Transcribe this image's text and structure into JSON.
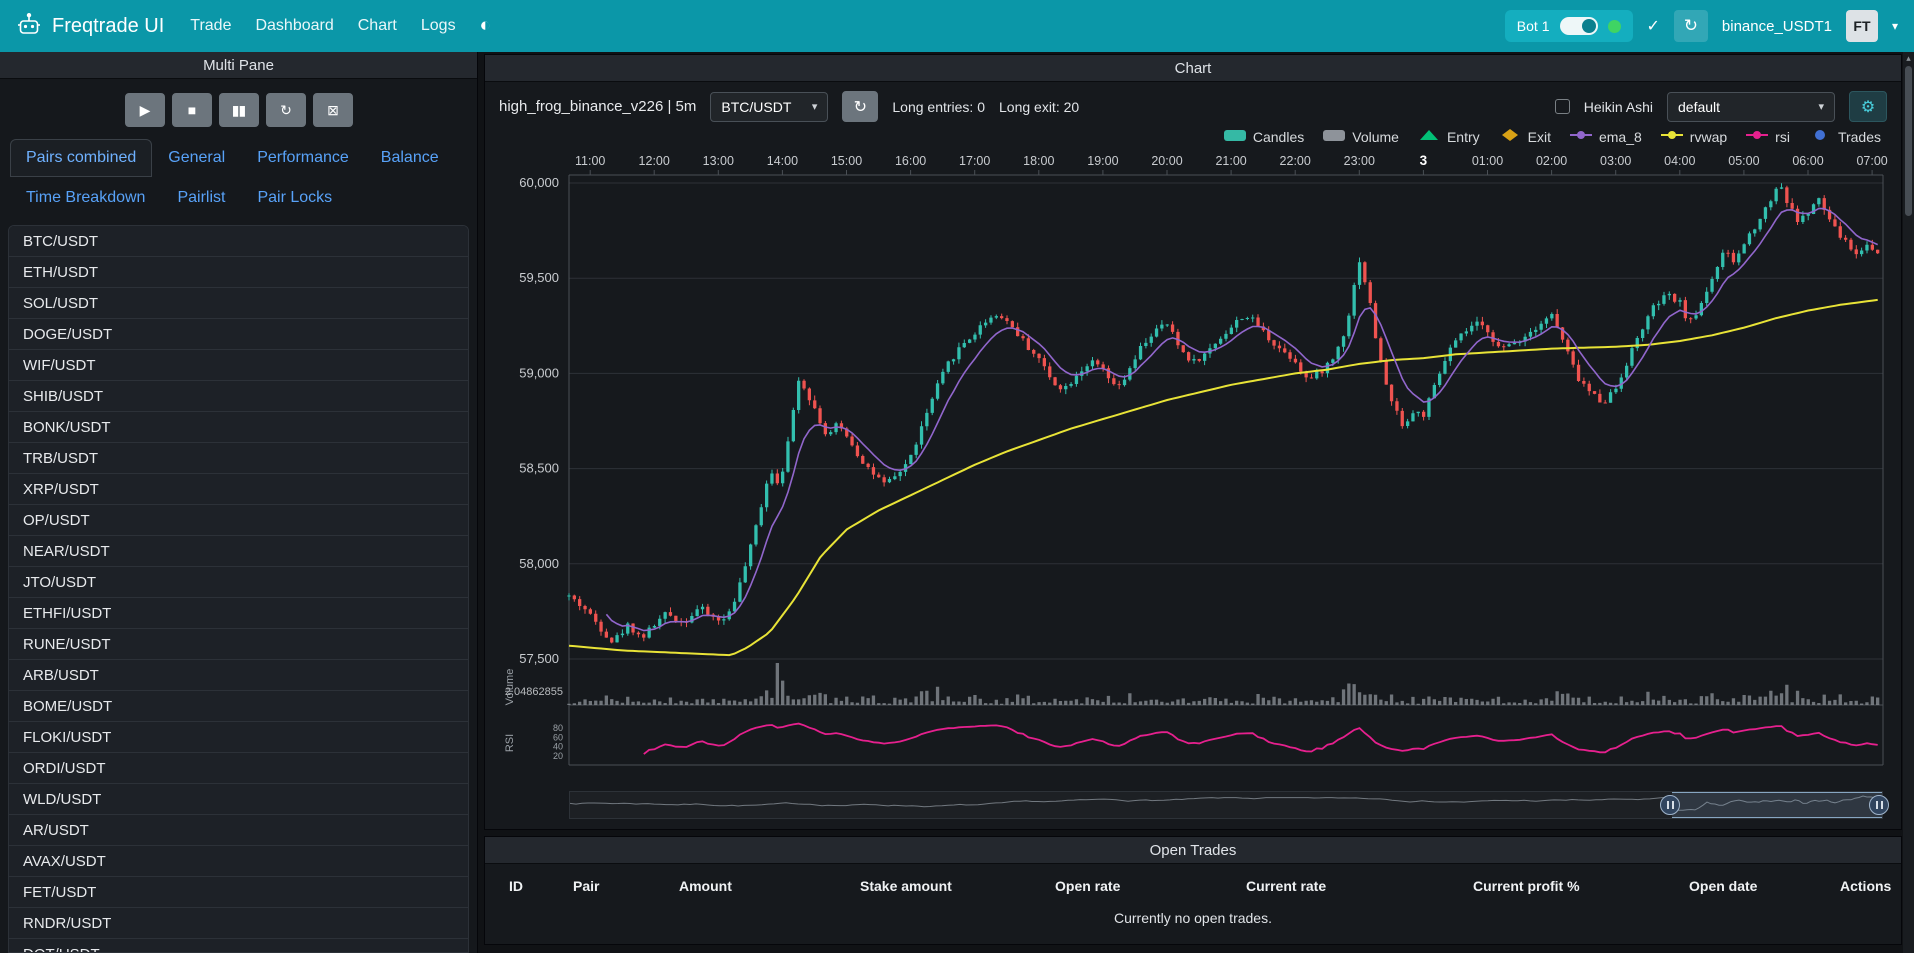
{
  "navbar": {
    "brand": "Freqtrade UI",
    "items": [
      "Trade",
      "Dashboard",
      "Chart",
      "Logs"
    ],
    "icons": {
      "theme": "◐",
      "check": "✓",
      "refresh": "↻",
      "caret": "▾"
    },
    "bot": {
      "label": "Bot 1",
      "online_color": "#3fd463"
    },
    "exchange_label": "binance_USDT1",
    "avatar": "FT"
  },
  "left_panel": {
    "title": "Multi Pane",
    "controls": [
      {
        "name": "play",
        "glyph": "▶"
      },
      {
        "name": "stop",
        "glyph": "■"
      },
      {
        "name": "pause",
        "glyph": "▮▮"
      },
      {
        "name": "reload",
        "glyph": "↻"
      },
      {
        "name": "clear-chart",
        "glyph": "⊠"
      }
    ],
    "tabs": [
      {
        "label": "Pairs combined",
        "active": true
      },
      {
        "label": "General",
        "active": false
      },
      {
        "label": "Performance",
        "active": false
      },
      {
        "label": "Balance",
        "active": false
      },
      {
        "label": "Time Breakdown",
        "active": false
      },
      {
        "label": "Pairlist",
        "active": false
      },
      {
        "label": "Pair Locks",
        "active": false
      }
    ],
    "pairs": [
      "BTC/USDT",
      "ETH/USDT",
      "SOL/USDT",
      "DOGE/USDT",
      "WIF/USDT",
      "SHIB/USDT",
      "BONK/USDT",
      "TRB/USDT",
      "XRP/USDT",
      "OP/USDT",
      "NEAR/USDT",
      "JTO/USDT",
      "ETHFI/USDT",
      "RUNE/USDT",
      "ARB/USDT",
      "BOME/USDT",
      "FLOKI/USDT",
      "ORDI/USDT",
      "WLD/USDT",
      "AR/USDT",
      "AVAX/USDT",
      "FET/USDT",
      "RNDR/USDT",
      "DOT/USDT"
    ]
  },
  "chart": {
    "title": "Chart",
    "toolbar": {
      "strategy_label": "high_frog_binance_v226 | 5m",
      "pair_select": "BTC/USDT",
      "refresh_icon": "↻",
      "long_entries": "Long entries: 0",
      "long_exit": "Long exit: 20",
      "heikin_label": "Heikin Ashi",
      "plot_config": "default",
      "gear_icon": "⚙",
      "caret": "▾"
    },
    "legend": [
      {
        "label": "Candles",
        "color": "#35b9a5",
        "marker": "rect"
      },
      {
        "label": "Volume",
        "color": "#8e939a",
        "marker": "rect"
      },
      {
        "label": "Entry",
        "color": "#02c076",
        "marker": "triangle"
      },
      {
        "label": "Exit",
        "color": "#d9a216",
        "marker": "diamond"
      },
      {
        "label": "ema_8",
        "color": "#9166cc",
        "marker": "line"
      },
      {
        "label": "rvwap",
        "color": "#e8e337",
        "marker": "line"
      },
      {
        "label": "rsi",
        "color": "#e6208e",
        "marker": "line"
      },
      {
        "label": "Trades",
        "color": "#4170d4",
        "marker": "circle"
      }
    ],
    "colors": {
      "up": "#32bfae",
      "down": "#ef5350",
      "volume": "#8e939a",
      "ema": "#9166cc",
      "rvwap": "#e8e337",
      "rsi": "#e6208e",
      "grid": "#2d3137",
      "axis": "#4a4f55",
      "text": "#c9ccd0"
    }
  },
  "chart_data": {
    "type": "candlestick",
    "pair": "BTC/USDT",
    "timeframe": "5m",
    "time_start": 10.67,
    "time_end": 31.17,
    "x_ticks": [
      {
        "t": 11,
        "label": "11:00"
      },
      {
        "t": 12,
        "label": "12:00"
      },
      {
        "t": 13,
        "label": "13:00"
      },
      {
        "t": 14,
        "label": "14:00"
      },
      {
        "t": 15,
        "label": "15:00"
      },
      {
        "t": 16,
        "label": "16:00"
      },
      {
        "t": 17,
        "label": "17:00"
      },
      {
        "t": 18,
        "label": "18:00"
      },
      {
        "t": 19,
        "label": "19:00"
      },
      {
        "t": 20,
        "label": "20:00"
      },
      {
        "t": 21,
        "label": "21:00"
      },
      {
        "t": 22,
        "label": "22:00"
      },
      {
        "t": 23,
        "label": "23:00"
      },
      {
        "t": 24,
        "label": "3",
        "bold": true
      },
      {
        "t": 25,
        "label": "01:00"
      },
      {
        "t": 26,
        "label": "02:00"
      },
      {
        "t": 27,
        "label": "03:00"
      },
      {
        "t": 28,
        "label": "04:00"
      },
      {
        "t": 29,
        "label": "05:00"
      },
      {
        "t": 30,
        "label": "06:00"
      },
      {
        "t": 31,
        "label": "07:00"
      }
    ],
    "y_ticks": [
      {
        "v": 60000,
        "label": "60,000"
      },
      {
        "v": 59500,
        "label": "59,500"
      },
      {
        "v": 59000,
        "label": "59,000"
      },
      {
        "v": 58500,
        "label": "58,500"
      },
      {
        "v": 58000,
        "label": "58,000"
      },
      {
        "v": 57500,
        "label": "57,500"
      }
    ],
    "ylim": [
      57350,
      60150
    ],
    "axis_labels": {
      "volume": "Volume",
      "rsi": "RSI"
    },
    "volume_axis_label": "2.04862855",
    "rsi_ticks": [
      80,
      60,
      40,
      20
    ],
    "derived": {
      "ema_period": 8,
      "rsi_period": 14
    },
    "price_anchors": [
      [
        10.67,
        57830
      ],
      [
        10.9,
        57770
      ],
      [
        11.1,
        57690
      ],
      [
        11.35,
        57590
      ],
      [
        11.6,
        57680
      ],
      [
        11.8,
        57610
      ],
      [
        12.0,
        57680
      ],
      [
        12.2,
        57740
      ],
      [
        12.45,
        57690
      ],
      [
        12.7,
        57770
      ],
      [
        12.9,
        57720
      ],
      [
        13.1,
        57700
      ],
      [
        13.3,
        57850
      ],
      [
        13.5,
        58080
      ],
      [
        13.65,
        58280
      ],
      [
        13.8,
        58500
      ],
      [
        13.95,
        58420
      ],
      [
        14.1,
        58650
      ],
      [
        14.25,
        58980
      ],
      [
        14.4,
        58890
      ],
      [
        14.55,
        58780
      ],
      [
        14.7,
        58660
      ],
      [
        14.85,
        58730
      ],
      [
        15.0,
        58680
      ],
      [
        15.2,
        58560
      ],
      [
        15.4,
        58480
      ],
      [
        15.6,
        58410
      ],
      [
        15.8,
        58470
      ],
      [
        16.0,
        58560
      ],
      [
        16.2,
        58740
      ],
      [
        16.4,
        58920
      ],
      [
        16.6,
        59060
      ],
      [
        16.8,
        59150
      ],
      [
        17.0,
        59210
      ],
      [
        17.2,
        59290
      ],
      [
        17.4,
        59310
      ],
      [
        17.6,
        59240
      ],
      [
        17.8,
        59150
      ],
      [
        18.0,
        59080
      ],
      [
        18.2,
        58960
      ],
      [
        18.4,
        58920
      ],
      [
        18.6,
        59000
      ],
      [
        18.8,
        59060
      ],
      [
        19.0,
        59020
      ],
      [
        19.2,
        58910
      ],
      [
        19.4,
        59000
      ],
      [
        19.6,
        59140
      ],
      [
        19.8,
        59220
      ],
      [
        20.0,
        59260
      ],
      [
        20.2,
        59130
      ],
      [
        20.4,
        59060
      ],
      [
        20.6,
        59100
      ],
      [
        20.8,
        59180
      ],
      [
        21.0,
        59240
      ],
      [
        21.2,
        59310
      ],
      [
        21.4,
        59260
      ],
      [
        21.6,
        59180
      ],
      [
        21.8,
        59120
      ],
      [
        22.0,
        59070
      ],
      [
        22.2,
        58960
      ],
      [
        22.4,
        59010
      ],
      [
        22.6,
        59080
      ],
      [
        22.8,
        59250
      ],
      [
        23.0,
        59600
      ],
      [
        23.15,
        59400
      ],
      [
        23.3,
        59100
      ],
      [
        23.5,
        58850
      ],
      [
        23.7,
        58720
      ],
      [
        23.85,
        58800
      ],
      [
        24.0,
        58780
      ],
      [
        24.2,
        58950
      ],
      [
        24.4,
        59120
      ],
      [
        24.6,
        59200
      ],
      [
        24.8,
        59260
      ],
      [
        25.0,
        59230
      ],
      [
        25.2,
        59120
      ],
      [
        25.4,
        59160
      ],
      [
        25.6,
        59200
      ],
      [
        25.8,
        59260
      ],
      [
        26.0,
        59310
      ],
      [
        26.2,
        59150
      ],
      [
        26.4,
        58980
      ],
      [
        26.6,
        58900
      ],
      [
        26.8,
        58850
      ],
      [
        27.0,
        58920
      ],
      [
        27.2,
        59080
      ],
      [
        27.4,
        59230
      ],
      [
        27.6,
        59350
      ],
      [
        27.8,
        59410
      ],
      [
        28.0,
        59370
      ],
      [
        28.15,
        59260
      ],
      [
        28.3,
        59340
      ],
      [
        28.5,
        59500
      ],
      [
        28.7,
        59640
      ],
      [
        28.85,
        59580
      ],
      [
        29.0,
        59680
      ],
      [
        29.2,
        59790
      ],
      [
        29.4,
        59900
      ],
      [
        29.55,
        60010
      ],
      [
        29.7,
        59880
      ],
      [
        29.85,
        59800
      ],
      [
        30.0,
        59840
      ],
      [
        30.15,
        59920
      ],
      [
        30.3,
        59830
      ],
      [
        30.45,
        59740
      ],
      [
        30.6,
        59690
      ],
      [
        30.75,
        59620
      ],
      [
        30.9,
        59680
      ],
      [
        31.05,
        59640
      ],
      [
        31.17,
        59620
      ]
    ],
    "rvwap_anchors": [
      [
        10.67,
        57570
      ],
      [
        11.5,
        57545
      ],
      [
        12.5,
        57530
      ],
      [
        13.2,
        57520
      ],
      [
        13.45,
        57560
      ],
      [
        13.8,
        57640
      ],
      [
        14.2,
        57820
      ],
      [
        14.6,
        58040
      ],
      [
        15.0,
        58180
      ],
      [
        15.5,
        58280
      ],
      [
        16.0,
        58360
      ],
      [
        16.5,
        58440
      ],
      [
        17.0,
        58520
      ],
      [
        17.5,
        58590
      ],
      [
        18.0,
        58650
      ],
      [
        18.5,
        58710
      ],
      [
        19.0,
        58760
      ],
      [
        19.5,
        58810
      ],
      [
        20.0,
        58860
      ],
      [
        20.5,
        58900
      ],
      [
        21.0,
        58940
      ],
      [
        21.5,
        58970
      ],
      [
        22.0,
        59000
      ],
      [
        22.5,
        59020
      ],
      [
        23.0,
        59050
      ],
      [
        23.5,
        59070
      ],
      [
        24.0,
        59080
      ],
      [
        24.5,
        59100
      ],
      [
        25.0,
        59110
      ],
      [
        25.5,
        59120
      ],
      [
        26.0,
        59130
      ],
      [
        26.5,
        59135
      ],
      [
        27.0,
        59140
      ],
      [
        27.5,
        59150
      ],
      [
        28.0,
        59170
      ],
      [
        28.5,
        59200
      ],
      [
        29.0,
        59240
      ],
      [
        29.5,
        59290
      ],
      [
        30.0,
        59330
      ],
      [
        30.5,
        59360
      ],
      [
        31.17,
        59390
      ]
    ],
    "volume_spikes": [
      {
        "t": 13.9,
        "amp": 2.8,
        "w": 0.02
      },
      {
        "t": 23.0,
        "amp": 1.2,
        "w": 0.05
      },
      {
        "t": 29.55,
        "amp": 0.9,
        "w": 0.06
      },
      {
        "t": 16.5,
        "amp": 0.5,
        "w": 0.2
      }
    ]
  },
  "datazoom": {
    "start_pct": 84,
    "end_pct": 100
  },
  "trades": {
    "title": "Open Trades",
    "columns": [
      "ID",
      "Pair",
      "Amount",
      "Stake amount",
      "Open rate",
      "Current rate",
      "Current profit %",
      "Open date",
      "Actions"
    ],
    "empty": "Currently no open trades."
  }
}
